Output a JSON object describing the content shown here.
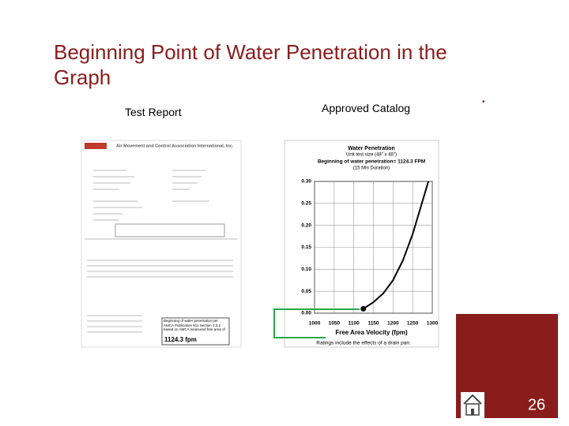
{
  "slide": {
    "title": "Beginning Point of Water Penetration in the Graph",
    "left_label": "Test Report",
    "right_label": "Approved Catalog",
    "page_number": "26"
  },
  "test_report": {
    "org": "Air Movement and Control Association International, Inc.",
    "box_text": "Beginning of water penetration per AMCA Publication 511 Section 3.3.2 based on AMCA measured free area of",
    "box_value": "1124.3 fpm"
  },
  "catalog_chart": {
    "type": "line",
    "title": "Water Penetration",
    "subtitle_1": "Unit test size (48\" x 48\")",
    "subtitle_2": "Beginning of water penetration= 1124.3 FPM",
    "subtitle_3": "(15 Min Duration)",
    "x_label": "Free Area Velocity (fpm)",
    "note": "Ratings include the effects of a drain pan.",
    "xlim": [
      1000,
      1300
    ],
    "xticks": [
      1000,
      1050,
      1100,
      1150,
      1200,
      1250,
      1300
    ],
    "ylim": [
      0,
      0.3
    ],
    "yticks": [
      {
        "value": 0.3,
        "label": "0.30"
      },
      {
        "value": 0.25,
        "label": "0.25"
      },
      {
        "value": 0.2,
        "label": "0.20"
      },
      {
        "value": 0.15,
        "label": "0.15"
      },
      {
        "value": 0.1,
        "label": "0.10"
      },
      {
        "value": 0.05,
        "label": "0.05"
      },
      {
        "value": 0,
        "label": "0.00"
      }
    ],
    "x": [
      1124.3,
      1150,
      1175,
      1200,
      1225,
      1250,
      1270,
      1290
    ],
    "values": [
      0.01,
      0.025,
      0.045,
      0.075,
      0.12,
      0.18,
      0.24,
      0.3
    ],
    "color": "#000000",
    "start_point": {
      "x": 1124.3,
      "value": 0.01
    }
  }
}
